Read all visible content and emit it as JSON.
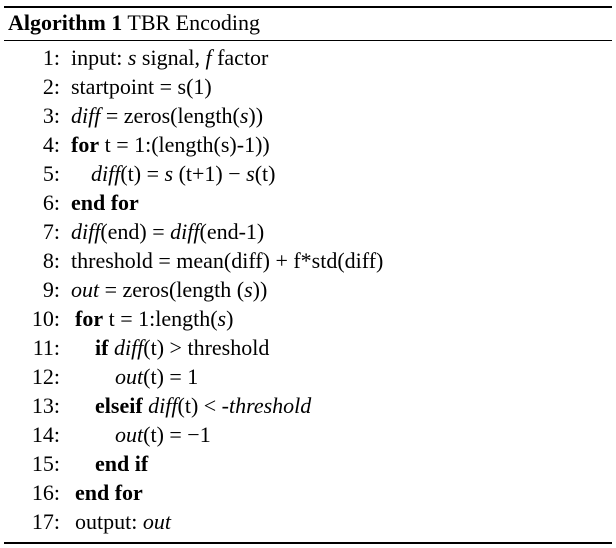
{
  "algorithm": {
    "label": "Algorithm 1",
    "title": "TBR Encoding"
  },
  "lines": [
    {
      "num": "1:",
      "parts": [
        {
          "t": "input: "
        },
        {
          "t": "s",
          "s": "it"
        },
        {
          "t": " signal, "
        },
        {
          "t": "f",
          "s": "it"
        },
        {
          "t": " factor"
        }
      ]
    },
    {
      "num": "2:",
      "parts": [
        {
          "t": "startpoint = s(1)"
        }
      ]
    },
    {
      "num": "3:",
      "parts": [
        {
          "t": "diff",
          "s": "it"
        },
        {
          "t": " = zeros(length("
        },
        {
          "t": "s",
          "s": "it"
        },
        {
          "t": "))"
        }
      ]
    },
    {
      "num": "4:",
      "parts": [
        {
          "t": "for",
          "s": "kw"
        },
        {
          "t": " t = 1:(length(s)-1))"
        }
      ]
    },
    {
      "num": "5:",
      "indent": 1,
      "parts": [
        {
          "t": "diff",
          "s": "it"
        },
        {
          "t": "(t) = "
        },
        {
          "t": "s",
          "s": "it"
        },
        {
          "t": " (t+1) − "
        },
        {
          "t": "s",
          "s": "it"
        },
        {
          "t": "(t)"
        }
      ]
    },
    {
      "num": "6:",
      "parts": [
        {
          "t": "end for",
          "s": "kw"
        }
      ]
    },
    {
      "num": "7:",
      "parts": [
        {
          "t": "diff",
          "s": "it"
        },
        {
          "t": "(end) = "
        },
        {
          "t": "diff",
          "s": "it"
        },
        {
          "t": "(end-1)"
        }
      ]
    },
    {
      "num": "8:",
      "parts": [
        {
          "t": "threshold = mean(diff) + f*std(diff)"
        }
      ]
    },
    {
      "num": "9:",
      "parts": [
        {
          "t": "out",
          "s": "it"
        },
        {
          "t": " = zeros(length ("
        },
        {
          "t": "s",
          "s": "it"
        },
        {
          "t": "))"
        }
      ]
    },
    {
      "num": "10:",
      "parts": [
        {
          "t": "for",
          "s": "kw"
        },
        {
          "t": " t = 1:length("
        },
        {
          "t": "s",
          "s": "it"
        },
        {
          "t": ")"
        }
      ]
    },
    {
      "num": "11:",
      "indent": 1,
      "parts": [
        {
          "t": "if",
          "s": "kw"
        },
        {
          "t": " "
        },
        {
          "t": "diff",
          "s": "it"
        },
        {
          "t": "(t) > threshold"
        }
      ]
    },
    {
      "num": "12:",
      "indent": 2,
      "parts": [
        {
          "t": "out",
          "s": "it"
        },
        {
          "t": "(t) = 1"
        }
      ]
    },
    {
      "num": "13:",
      "indent": 1,
      "parts": [
        {
          "t": "elseif",
          "s": "kw"
        },
        {
          "t": " "
        },
        {
          "t": "diff",
          "s": "it"
        },
        {
          "t": "(t) < "
        },
        {
          "t": "-threshold",
          "s": "it"
        }
      ]
    },
    {
      "num": "14:",
      "indent": 2,
      "parts": [
        {
          "t": "out",
          "s": "it"
        },
        {
          "t": "(t) = −1"
        }
      ]
    },
    {
      "num": "15:",
      "indent": 1,
      "parts": [
        {
          "t": "end if",
          "s": "kw"
        }
      ]
    },
    {
      "num": "16:",
      "parts": [
        {
          "t": "end for",
          "s": "kw"
        }
      ]
    },
    {
      "num": "17:",
      "parts": [
        {
          "t": "output: "
        },
        {
          "t": "out",
          "s": "it"
        }
      ]
    }
  ]
}
